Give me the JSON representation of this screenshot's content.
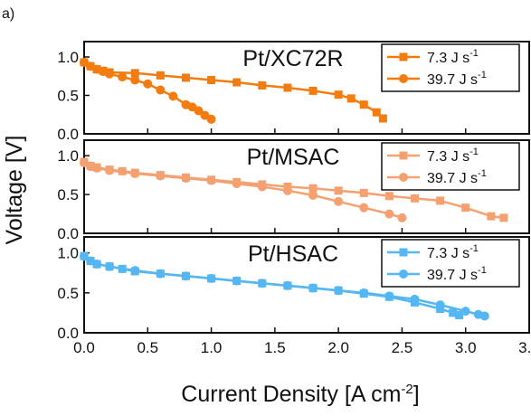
{
  "figure": {
    "panel_letter": "a)",
    "ylabel": "Voltage [V]",
    "xlabel_main": "Current Density [A cm",
    "xlabel_sup": "-2",
    "xlabel_end": "]",
    "x_ticks": [
      "0.0",
      "0.5",
      "1.0",
      "1.5",
      "2.0",
      "2.5",
      "3.0",
      "3.5"
    ],
    "y_ticks": [
      "0.0",
      "0.5",
      "1.0"
    ]
  },
  "chart_data": [
    {
      "type": "line",
      "title": "Pt/XC72R",
      "xlabel": "Current Density [A cm-2]",
      "ylabel": "Voltage [V]",
      "xlim": [
        0,
        3.5
      ],
      "ylim": [
        0,
        1.2
      ],
      "legend_position": "top-right",
      "color": "#f47c0e",
      "series": [
        {
          "name": "7.3 J s",
          "name_sup": "-1",
          "marker": "square",
          "x": [
            0.0,
            0.05,
            0.1,
            0.15,
            0.2,
            0.4,
            0.6,
            0.8,
            1.0,
            1.2,
            1.4,
            1.6,
            1.8,
            2.0,
            2.1,
            2.2,
            2.3,
            2.35
          ],
          "y": [
            0.93,
            0.88,
            0.84,
            0.82,
            0.8,
            0.79,
            0.76,
            0.73,
            0.7,
            0.67,
            0.63,
            0.6,
            0.56,
            0.51,
            0.46,
            0.38,
            0.28,
            0.2
          ]
        },
        {
          "name": "39.7 J s",
          "name_sup": "-1",
          "marker": "circle",
          "x": [
            0.0,
            0.05,
            0.1,
            0.15,
            0.2,
            0.3,
            0.4,
            0.5,
            0.6,
            0.7,
            0.8,
            0.85,
            0.9,
            0.95,
            1.0
          ],
          "y": [
            0.93,
            0.88,
            0.84,
            0.81,
            0.78,
            0.74,
            0.7,
            0.65,
            0.57,
            0.49,
            0.38,
            0.35,
            0.3,
            0.24,
            0.19
          ]
        }
      ]
    },
    {
      "type": "line",
      "title": "Pt/MSAC",
      "xlabel": "Current Density [A cm-2]",
      "ylabel": "Voltage [V]",
      "xlim": [
        0,
        3.5
      ],
      "ylim": [
        0,
        1.2
      ],
      "legend_position": "top-right",
      "color": "#f4a070",
      "series": [
        {
          "name": "7.3 J s",
          "name_sup": "-1",
          "marker": "square",
          "x": [
            0.0,
            0.05,
            0.1,
            0.2,
            0.3,
            0.4,
            0.6,
            0.8,
            1.0,
            1.2,
            1.4,
            1.6,
            1.8,
            2.0,
            2.2,
            2.4,
            2.6,
            2.8,
            3.0,
            3.2,
            3.3
          ],
          "y": [
            0.92,
            0.87,
            0.85,
            0.82,
            0.8,
            0.78,
            0.75,
            0.72,
            0.69,
            0.66,
            0.63,
            0.6,
            0.58,
            0.55,
            0.52,
            0.48,
            0.45,
            0.42,
            0.33,
            0.22,
            0.2
          ]
        },
        {
          "name": "39.7 J s",
          "name_sup": "-1",
          "marker": "circle",
          "x": [
            0.0,
            0.05,
            0.1,
            0.2,
            0.4,
            0.6,
            0.8,
            1.0,
            1.2,
            1.4,
            1.6,
            1.8,
            2.0,
            2.2,
            2.4,
            2.5
          ],
          "y": [
            0.91,
            0.86,
            0.84,
            0.81,
            0.77,
            0.74,
            0.71,
            0.68,
            0.64,
            0.6,
            0.55,
            0.49,
            0.41,
            0.33,
            0.25,
            0.2
          ]
        }
      ]
    },
    {
      "type": "line",
      "title": "Pt/HSAC",
      "xlabel": "Current Density [A cm-2]",
      "ylabel": "Voltage [V]",
      "xlim": [
        0,
        3.5
      ],
      "ylim": [
        0,
        1.2
      ],
      "legend_position": "top-right",
      "color": "#54b6f2",
      "series": [
        {
          "name": "7.3 J s",
          "name_sup": "-1",
          "marker": "square",
          "x": [
            0.0,
            0.05,
            0.1,
            0.2,
            0.3,
            0.4,
            0.6,
            0.8,
            1.0,
            1.2,
            1.4,
            1.6,
            1.8,
            2.0,
            2.2,
            2.4,
            2.6,
            2.8,
            2.9,
            2.95
          ],
          "y": [
            0.96,
            0.9,
            0.86,
            0.83,
            0.8,
            0.77,
            0.74,
            0.71,
            0.68,
            0.65,
            0.62,
            0.59,
            0.56,
            0.53,
            0.49,
            0.45,
            0.38,
            0.3,
            0.25,
            0.22
          ]
        },
        {
          "name": "39.7 J s",
          "name_sup": "-1",
          "marker": "circle",
          "x": [
            0.0,
            0.05,
            0.1,
            0.2,
            0.4,
            0.6,
            0.8,
            1.0,
            1.2,
            1.4,
            1.6,
            1.8,
            2.0,
            2.2,
            2.4,
            2.6,
            2.8,
            3.0,
            3.1,
            3.15
          ],
          "y": [
            0.96,
            0.9,
            0.86,
            0.83,
            0.78,
            0.74,
            0.71,
            0.68,
            0.65,
            0.62,
            0.59,
            0.56,
            0.53,
            0.5,
            0.46,
            0.42,
            0.35,
            0.27,
            0.23,
            0.21
          ]
        }
      ]
    }
  ]
}
